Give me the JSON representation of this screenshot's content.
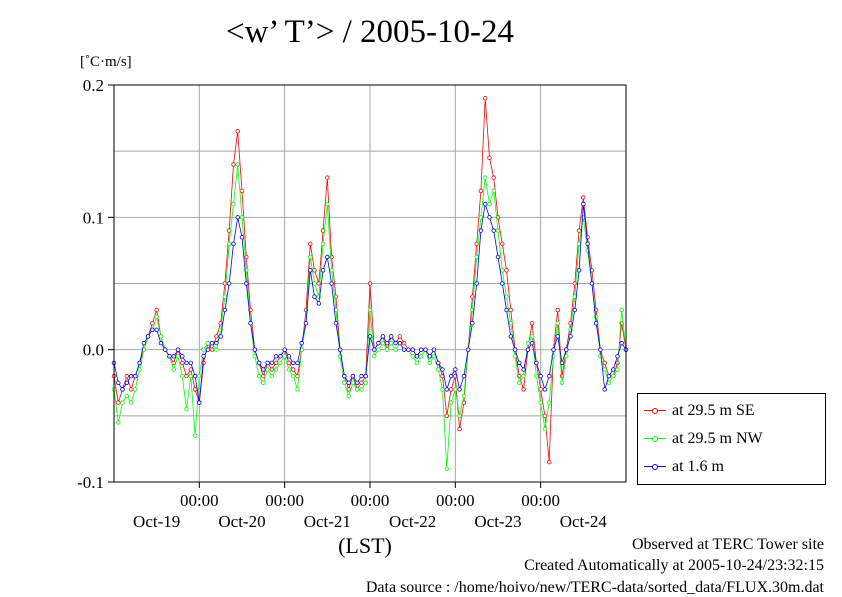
{
  "title": "<w’ T’> / 2005-10-24",
  "unit_label": "[˚C·m/s]",
  "footer": {
    "line1": "Observed at TERC Tower site",
    "line2": "Created Automatically at 2005-10-24/23:32:15",
    "line3": "Data source : /home/hoivo/new/TERC-data/sorted_data/FLUX.30m.dat"
  },
  "chart_data": {
    "type": "line",
    "title": "<w’ T’> / 2005-10-24",
    "xlabel": "(LST)",
    "ylabel": "[˚C·m/s]",
    "xlim": [
      0,
      6
    ],
    "ylim": [
      -0.1,
      0.2
    ],
    "y_ticks": [
      {
        "value": -0.1,
        "label": "-0.1"
      },
      {
        "value": 0.0,
        "label": "0.0"
      },
      {
        "value": 0.1,
        "label": "0.1"
      },
      {
        "value": 0.2,
        "label": "0.2"
      }
    ],
    "x_ticks": [
      {
        "value": 1,
        "label": "00:00"
      },
      {
        "value": 2,
        "label": "00:00"
      },
      {
        "value": 3,
        "label": "00:00"
      },
      {
        "value": 4,
        "label": "00:00"
      },
      {
        "value": 5,
        "label": "00:00"
      }
    ],
    "day_labels": [
      {
        "value": 0.5,
        "label": "Oct-19"
      },
      {
        "value": 1.5,
        "label": "Oct-20"
      },
      {
        "value": 2.5,
        "label": "Oct-21"
      },
      {
        "value": 3.5,
        "label": "Oct-22"
      },
      {
        "value": 4.5,
        "label": "Oct-23"
      },
      {
        "value": 5.5,
        "label": "Oct-24"
      }
    ],
    "grid": true,
    "legend_position": "bottom-right outside",
    "series": [
      {
        "name": "at 29.5 m SE",
        "color": "#ff0000",
        "x": [
          0.0,
          0.05,
          0.1,
          0.15,
          0.2,
          0.25,
          0.3,
          0.35,
          0.4,
          0.45,
          0.5,
          0.55,
          0.6,
          0.65,
          0.7,
          0.75,
          0.8,
          0.85,
          0.9,
          0.95,
          1.0,
          1.05,
          1.1,
          1.15,
          1.2,
          1.25,
          1.3,
          1.35,
          1.4,
          1.45,
          1.5,
          1.55,
          1.6,
          1.65,
          1.7,
          1.75,
          1.8,
          1.85,
          1.9,
          1.95,
          2.0,
          2.05,
          2.1,
          2.15,
          2.2,
          2.25,
          2.3,
          2.35,
          2.4,
          2.45,
          2.5,
          2.55,
          2.6,
          2.65,
          2.7,
          2.75,
          2.8,
          2.85,
          2.9,
          2.95,
          3.0,
          3.05,
          3.1,
          3.15,
          3.2,
          3.25,
          3.3,
          3.35,
          3.4,
          3.45,
          3.5,
          3.55,
          3.6,
          3.65,
          3.7,
          3.75,
          3.8,
          3.85,
          3.9,
          3.95,
          4.0,
          4.05,
          4.1,
          4.15,
          4.2,
          4.25,
          4.3,
          4.35,
          4.4,
          4.45,
          4.5,
          4.55,
          4.6,
          4.65,
          4.7,
          4.75,
          4.8,
          4.85,
          4.9,
          4.95,
          5.0,
          5.05,
          5.1,
          5.15,
          5.2,
          5.25,
          5.3,
          5.35,
          5.4,
          5.45,
          5.5,
          5.55,
          5.6,
          5.65,
          5.7,
          5.75,
          5.8,
          5.85,
          5.9,
          5.95,
          6.0
        ],
        "values": [
          -0.02,
          -0.04,
          -0.03,
          -0.02,
          -0.03,
          -0.02,
          -0.01,
          0.0,
          0.01,
          0.02,
          0.03,
          0.01,
          0.0,
          -0.005,
          -0.01,
          0.0,
          -0.01,
          -0.02,
          -0.015,
          -0.03,
          -0.04,
          -0.01,
          0.005,
          0.0,
          0.01,
          0.02,
          0.05,
          0.09,
          0.14,
          0.165,
          0.12,
          0.07,
          0.03,
          0.0,
          -0.01,
          -0.02,
          -0.01,
          -0.015,
          -0.01,
          -0.005,
          0.0,
          -0.01,
          -0.015,
          -0.02,
          0.0,
          0.03,
          0.08,
          0.06,
          0.05,
          0.09,
          0.13,
          0.07,
          0.04,
          0.0,
          -0.02,
          -0.03,
          -0.02,
          -0.03,
          -0.025,
          -0.02,
          0.05,
          0.0,
          0.005,
          0.01,
          0.0,
          0.01,
          0.005,
          0.01,
          0.005,
          0.0,
          0.0,
          -0.005,
          0.0,
          0.0,
          -0.005,
          0.0,
          -0.01,
          -0.02,
          -0.05,
          -0.03,
          -0.02,
          -0.06,
          -0.04,
          0.0,
          0.04,
          0.08,
          0.12,
          0.19,
          0.145,
          0.13,
          0.1,
          0.08,
          0.06,
          0.03,
          0.0,
          -0.02,
          -0.03,
          0.0,
          0.02,
          -0.01,
          -0.03,
          -0.05,
          -0.085,
          0.0,
          0.03,
          -0.02,
          0.0,
          0.02,
          0.05,
          0.09,
          0.115,
          0.085,
          0.06,
          0.03,
          0.0,
          -0.01,
          -0.02,
          -0.02,
          -0.01,
          0.02,
          0.0
        ]
      },
      {
        "name": "at 29.5 m NW",
        "color": "#00ff00",
        "x": [
          0.0,
          0.05,
          0.1,
          0.15,
          0.2,
          0.25,
          0.3,
          0.35,
          0.4,
          0.45,
          0.5,
          0.55,
          0.6,
          0.65,
          0.7,
          0.75,
          0.8,
          0.85,
          0.9,
          0.95,
          1.0,
          1.05,
          1.1,
          1.15,
          1.2,
          1.25,
          1.3,
          1.35,
          1.4,
          1.45,
          1.5,
          1.55,
          1.6,
          1.65,
          1.7,
          1.75,
          1.8,
          1.85,
          1.9,
          1.95,
          2.0,
          2.05,
          2.1,
          2.15,
          2.2,
          2.25,
          2.3,
          2.35,
          2.4,
          2.45,
          2.5,
          2.55,
          2.6,
          2.65,
          2.7,
          2.75,
          2.8,
          2.85,
          2.9,
          2.95,
          3.0,
          3.05,
          3.1,
          3.15,
          3.2,
          3.25,
          3.3,
          3.35,
          3.4,
          3.45,
          3.5,
          3.55,
          3.6,
          3.65,
          3.7,
          3.75,
          3.8,
          3.85,
          3.9,
          3.95,
          4.0,
          4.05,
          4.1,
          4.15,
          4.2,
          4.25,
          4.3,
          4.35,
          4.4,
          4.45,
          4.5,
          4.55,
          4.6,
          4.65,
          4.7,
          4.75,
          4.8,
          4.85,
          4.9,
          4.95,
          5.0,
          5.05,
          5.1,
          5.15,
          5.2,
          5.25,
          5.3,
          5.35,
          5.4,
          5.45,
          5.5,
          5.55,
          5.6,
          5.65,
          5.7,
          5.75,
          5.8,
          5.85,
          5.9,
          5.95,
          6.0
        ],
        "values": [
          -0.03,
          -0.055,
          -0.04,
          -0.035,
          -0.04,
          -0.03,
          -0.015,
          0.0,
          0.01,
          0.015,
          0.025,
          0.01,
          0.0,
          -0.005,
          -0.015,
          -0.005,
          -0.02,
          -0.045,
          -0.02,
          -0.065,
          -0.02,
          0.0,
          0.005,
          0.005,
          0.0,
          0.015,
          0.04,
          0.08,
          0.11,
          0.14,
          0.1,
          0.06,
          0.02,
          -0.005,
          -0.02,
          -0.025,
          -0.015,
          -0.02,
          -0.015,
          -0.01,
          -0.005,
          -0.015,
          -0.02,
          -0.03,
          0.0,
          0.02,
          0.07,
          0.05,
          0.04,
          0.08,
          0.11,
          0.06,
          0.03,
          -0.005,
          -0.025,
          -0.035,
          -0.025,
          -0.03,
          -0.03,
          -0.025,
          0.03,
          -0.005,
          0.0,
          0.005,
          0.0,
          0.005,
          0.0,
          0.005,
          0.0,
          0.0,
          -0.005,
          -0.01,
          -0.005,
          0.0,
          -0.01,
          -0.005,
          -0.015,
          -0.03,
          -0.09,
          -0.04,
          -0.03,
          -0.05,
          -0.035,
          0.0,
          0.03,
          0.07,
          0.1,
          0.13,
          0.11,
          0.12,
          0.09,
          0.06,
          0.04,
          0.02,
          -0.005,
          -0.025,
          -0.02,
          0.005,
          0.01,
          -0.02,
          -0.04,
          -0.06,
          -0.04,
          -0.005,
          0.02,
          -0.025,
          -0.005,
          0.015,
          0.04,
          0.08,
          0.1,
          0.075,
          0.05,
          0.025,
          -0.005,
          -0.015,
          -0.025,
          -0.02,
          -0.015,
          0.03,
          0.0
        ]
      },
      {
        "name": "at 1.6 m",
        "color": "#0000ff",
        "x": [
          0.0,
          0.05,
          0.1,
          0.15,
          0.2,
          0.25,
          0.3,
          0.35,
          0.4,
          0.45,
          0.5,
          0.55,
          0.6,
          0.65,
          0.7,
          0.75,
          0.8,
          0.85,
          0.9,
          0.95,
          1.0,
          1.05,
          1.1,
          1.15,
          1.2,
          1.25,
          1.3,
          1.35,
          1.4,
          1.45,
          1.5,
          1.55,
          1.6,
          1.65,
          1.7,
          1.75,
          1.8,
          1.85,
          1.9,
          1.95,
          2.0,
          2.05,
          2.1,
          2.15,
          2.2,
          2.25,
          2.3,
          2.35,
          2.4,
          2.45,
          2.5,
          2.55,
          2.6,
          2.65,
          2.7,
          2.75,
          2.8,
          2.85,
          2.9,
          2.95,
          3.0,
          3.05,
          3.1,
          3.15,
          3.2,
          3.25,
          3.3,
          3.35,
          3.4,
          3.45,
          3.5,
          3.55,
          3.6,
          3.65,
          3.7,
          3.75,
          3.8,
          3.85,
          3.9,
          3.95,
          4.0,
          4.05,
          4.1,
          4.15,
          4.2,
          4.25,
          4.3,
          4.35,
          4.4,
          4.45,
          4.5,
          4.55,
          4.6,
          4.65,
          4.7,
          4.75,
          4.8,
          4.85,
          4.9,
          4.95,
          5.0,
          5.05,
          5.1,
          5.15,
          5.2,
          5.25,
          5.3,
          5.35,
          5.4,
          5.45,
          5.5,
          5.55,
          5.6,
          5.65,
          5.7,
          5.75,
          5.8,
          5.85,
          5.9,
          5.95,
          6.0
        ],
        "values": [
          -0.01,
          -0.025,
          -0.03,
          -0.025,
          -0.02,
          -0.02,
          -0.01,
          0.005,
          0.01,
          0.015,
          0.015,
          0.005,
          0.0,
          -0.005,
          -0.005,
          0.0,
          -0.005,
          -0.01,
          -0.01,
          -0.02,
          -0.04,
          -0.005,
          0.0,
          0.005,
          0.005,
          0.01,
          0.03,
          0.05,
          0.08,
          0.1,
          0.085,
          0.05,
          0.02,
          0.0,
          -0.01,
          -0.015,
          -0.01,
          -0.01,
          -0.005,
          -0.005,
          0.0,
          -0.005,
          -0.01,
          -0.01,
          0.005,
          0.02,
          0.06,
          0.04,
          0.035,
          0.06,
          0.07,
          0.05,
          0.02,
          0.0,
          -0.02,
          -0.025,
          -0.02,
          -0.025,
          -0.02,
          -0.02,
          0.01,
          0.0,
          0.005,
          0.01,
          0.005,
          0.01,
          0.005,
          0.005,
          0.0,
          0.0,
          0.0,
          -0.005,
          0.0,
          0.0,
          -0.005,
          0.0,
          -0.01,
          -0.015,
          -0.03,
          -0.02,
          -0.015,
          -0.03,
          -0.02,
          0.0,
          0.02,
          0.05,
          0.09,
          0.11,
          0.1,
          0.09,
          0.07,
          0.05,
          0.03,
          0.01,
          0.0,
          -0.01,
          -0.015,
          0.0,
          0.005,
          -0.01,
          -0.02,
          -0.03,
          -0.02,
          0.0,
          0.01,
          -0.01,
          0.0,
          0.01,
          0.03,
          0.06,
          0.11,
          0.08,
          0.05,
          0.02,
          0.0,
          -0.03,
          -0.02,
          -0.015,
          -0.005,
          0.005,
          0.0
        ]
      }
    ]
  }
}
